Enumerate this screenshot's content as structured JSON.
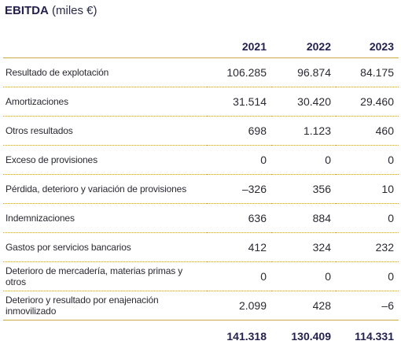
{
  "title": {
    "bold": "EBITDA",
    "rest": "(miles €)"
  },
  "columns": [
    "2021",
    "2022",
    "2023"
  ],
  "rows": [
    {
      "label": "Resultado de explotación",
      "values": [
        "106.285",
        "96.874",
        "84.175"
      ]
    },
    {
      "label": "Amortizaciones",
      "values": [
        "31.514",
        "30.420",
        "29.460"
      ]
    },
    {
      "label": "Otros resultados",
      "values": [
        "698",
        "1.123",
        "460"
      ]
    },
    {
      "label": "Exceso de provisiones",
      "values": [
        "0",
        "0",
        "0"
      ]
    },
    {
      "label": "Pérdida, deterioro y variación de provisiones",
      "values": [
        "–326",
        "356",
        "10"
      ]
    },
    {
      "label": "Indemnizaciones",
      "values": [
        "636",
        "884",
        "0"
      ]
    },
    {
      "label": "Gastos por servicios bancarios",
      "values": [
        "412",
        "324",
        "232"
      ]
    },
    {
      "label": "Deterioro de mercadería, materias primas y otros",
      "values": [
        "0",
        "0",
        "0"
      ]
    },
    {
      "label": "Deterioro y resultado por enajenación inmovilizado",
      "values": [
        "2.099",
        "428",
        "–6"
      ]
    }
  ],
  "totals": [
    "141.318",
    "130.409",
    "114.331"
  ]
}
